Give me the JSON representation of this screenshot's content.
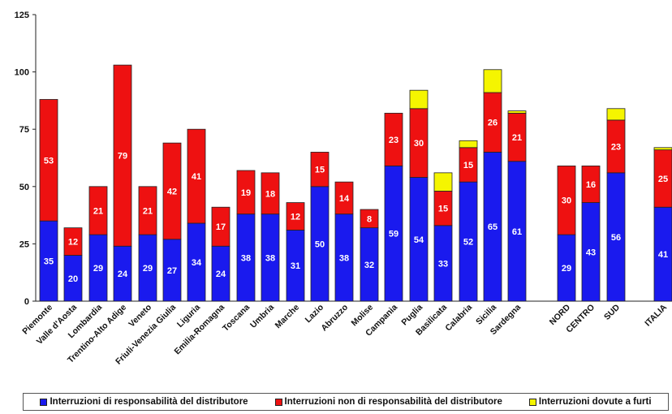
{
  "chart_data": {
    "type": "bar",
    "stacked": true,
    "title": "",
    "xlabel": "",
    "ylabel": "",
    "ylim": [
      0,
      125
    ],
    "yticks": [
      0,
      25,
      50,
      75,
      100,
      125
    ],
    "grid": false,
    "legend_position": "bottom",
    "categories": [
      "Piemonte",
      "Valle d'Aosta",
      "Lombardia",
      "Trentino-Alto Adige",
      "Veneto",
      "Friuli-Venezia Giulia",
      "Liguria",
      "Emilia-Romagna",
      "Toscana",
      "Umbria",
      "Marche",
      "Lazio",
      "Abruzzo",
      "Molise",
      "Campania",
      "Puglia",
      "Basilicata",
      "Calabria",
      "Sicilia",
      "Sardegna",
      "NORD",
      "CENTRO",
      "SUD",
      "ITALIA"
    ],
    "series": [
      {
        "name": "Interruzioni di responsabilità del distributore",
        "color": "#1a1aee",
        "values": [
          35,
          20,
          29,
          24,
          29,
          27,
          34,
          24,
          38,
          38,
          31,
          50,
          38,
          32,
          59,
          54,
          33,
          52,
          65,
          61,
          29,
          43,
          56,
          41
        ],
        "labels": [
          "35",
          "20",
          "29",
          "24",
          "29",
          "27",
          "34",
          "24",
          "38",
          "38",
          "31",
          "50",
          "38",
          "32",
          "59",
          "54",
          "33",
          "52",
          "65",
          "61",
          "29",
          "43",
          "56",
          "41"
        ]
      },
      {
        "name": "Interruzioni non di responsabilità del distributore",
        "color": "#ee1111",
        "values": [
          53,
          12,
          21,
          79,
          21,
          42,
          41,
          17,
          19,
          18,
          12,
          15,
          14,
          8,
          23,
          30,
          15,
          15,
          26,
          21,
          30,
          16,
          23,
          25
        ],
        "labels": [
          "53",
          "12",
          "21",
          "79",
          "21",
          "42",
          "41",
          "17",
          "19",
          "18",
          "12",
          "15",
          "14",
          "8",
          "23",
          "30",
          "15",
          "15",
          "26",
          "21",
          "30",
          "16",
          "23",
          "25"
        ]
      },
      {
        "name": "Interruzioni dovute a furti",
        "color": "#f5f500",
        "values": [
          0,
          0,
          0,
          0,
          0,
          0,
          0,
          0,
          0,
          0,
          0,
          0,
          0,
          0,
          0,
          8,
          8,
          3,
          10,
          1,
          0,
          0,
          5,
          1
        ],
        "labels": [
          "",
          "",
          "",
          "",
          "",
          "",
          "",
          "",
          "",
          "",
          "",
          "",
          "",
          "",
          "",
          "",
          "",
          "",
          "",
          "",
          "",
          "",
          "",
          ""
        ]
      }
    ]
  }
}
